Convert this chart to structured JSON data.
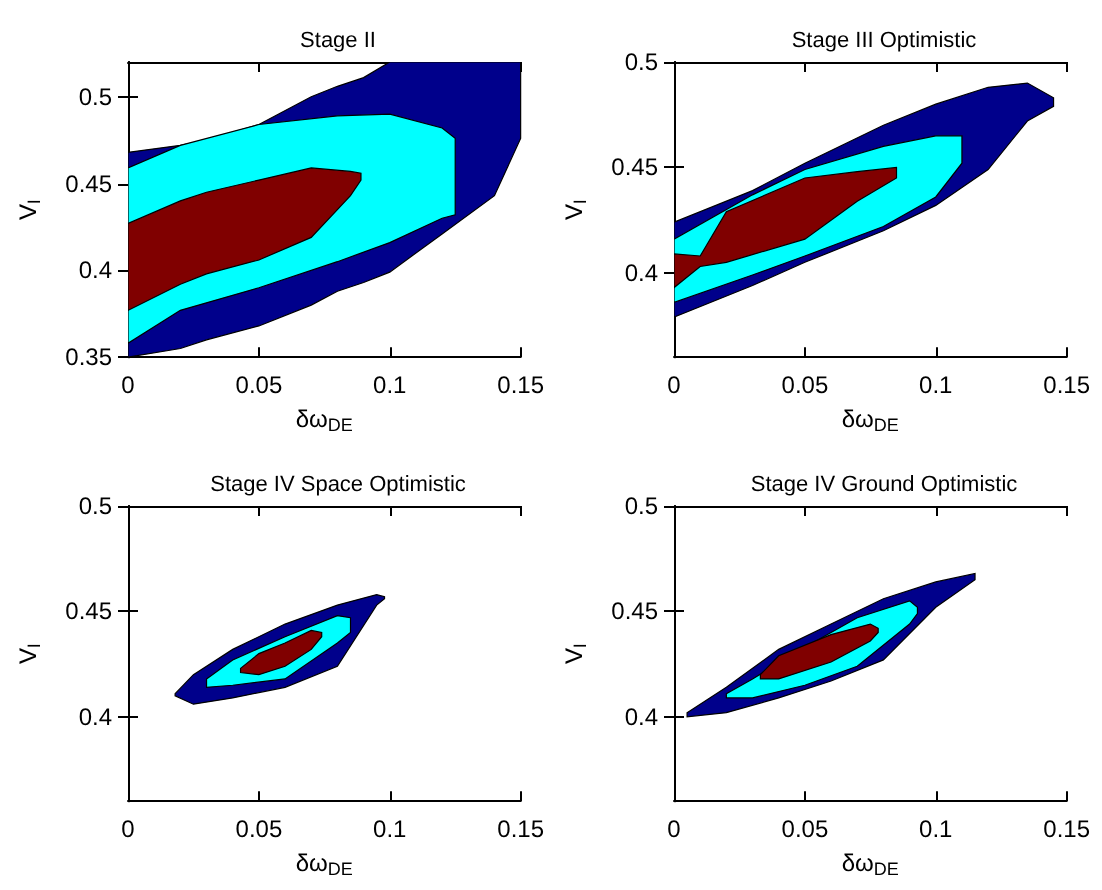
{
  "chart_data": [
    {
      "type": "area",
      "title": "Stage II",
      "xlabel": "δω$_{DE}$",
      "ylabel": "V$_{I}$",
      "xlim": [
        0,
        0.15
      ],
      "ylim": [
        0.35,
        0.52
      ],
      "xticks": [
        0,
        0.05,
        0.1,
        0.15
      ],
      "yticks": [
        0.35,
        0.4,
        0.45,
        0.5
      ],
      "grid": false,
      "series": [
        {
          "color": "#00008b",
          "x": [
            0,
            0.02,
            0.03,
            0.05,
            0.07,
            0.08,
            0.09,
            0.1,
            0.12,
            0.14,
            0.15
          ],
          "values": [
            null,
            null,
            null,
            null,
            null,
            null,
            null,
            null,
            null,
            null,
            null
          ],
          "lower": [
            0.35,
            0.355,
            0.36,
            0.368,
            0.38,
            0.388,
            0.393,
            0.399,
            0.421,
            0.443,
            0.476
          ],
          "upper": [
            0.468,
            0.472,
            0.475,
            0.484,
            0.5,
            0.506,
            0.511,
            0.52,
            0.52,
            0.52,
            0.52
          ]
        },
        {
          "color": "#00ffff",
          "x": [
            0,
            0.02,
            0.05,
            0.08,
            0.1,
            0.12,
            0.125
          ],
          "values": [
            null,
            null,
            null,
            null,
            null,
            null,
            null
          ],
          "lower": [
            0.358,
            0.377,
            0.39,
            0.405,
            0.416,
            0.43,
            0.432
          ],
          "upper": [
            0.459,
            0.472,
            0.484,
            0.489,
            0.49,
            0.482,
            0.476
          ]
        },
        {
          "color": "#800000",
          "x": [
            0,
            0.02,
            0.03,
            0.05,
            0.07,
            0.085,
            0.089
          ],
          "values": [
            null,
            null,
            null,
            null,
            null,
            null,
            null
          ],
          "lower": [
            0.377,
            0.392,
            0.398,
            0.406,
            0.419,
            0.443,
            0.452
          ],
          "upper": [
            0.427,
            0.44,
            0.445,
            0.452,
            0.459,
            0.457,
            0.456
          ]
        }
      ]
    },
    {
      "type": "area",
      "title": "Stage III Optimistic",
      "xlabel": "δω$_{DE}$",
      "ylabel": "V$_{I}$",
      "xlim": [
        0,
        0.15
      ],
      "ylim": [
        0.36,
        0.5
      ],
      "xticks": [
        0,
        0.05,
        0.1,
        0.15
      ],
      "yticks": [
        0.4,
        0.45,
        0.5
      ],
      "grid": false,
      "series": [
        {
          "color": "#00008b",
          "x": [
            0,
            0.03,
            0.05,
            0.08,
            0.1,
            0.12,
            0.135,
            0.145
          ],
          "values": [
            null,
            null,
            null,
            null,
            null,
            null,
            null,
            null
          ],
          "lower": [
            0.379,
            0.394,
            0.405,
            0.42,
            0.432,
            0.449,
            0.472,
            0.479
          ],
          "upper": [
            0.424,
            0.439,
            0.452,
            0.47,
            0.48,
            0.488,
            0.49,
            0.483
          ]
        },
        {
          "color": "#00ffff",
          "x": [
            0,
            0.03,
            0.05,
            0.08,
            0.1,
            0.11
          ],
          "values": [
            null,
            null,
            null,
            null,
            null,
            null
          ],
          "lower": [
            0.386,
            0.399,
            0.408,
            0.422,
            0.436,
            0.452
          ],
          "upper": [
            0.416,
            0.437,
            0.449,
            0.46,
            0.465,
            0.465
          ]
        },
        {
          "color": "#800000",
          "x": [
            0,
            0.01,
            0.02,
            0.05,
            0.07,
            0.085
          ],
          "values": [
            null,
            null,
            null,
            null,
            null,
            null
          ],
          "lower": [
            0.393,
            0.403,
            0.405,
            0.416,
            0.434,
            0.445
          ],
          "upper": [
            0.409,
            0.408,
            0.429,
            0.445,
            0.448,
            0.45
          ]
        }
      ]
    },
    {
      "type": "area",
      "title": "Stage IV Space Optimistic",
      "xlabel": "δω$_{DE}$",
      "ylabel": "V$_{I}$",
      "xlim": [
        0,
        0.15
      ],
      "ylim": [
        0.36,
        0.5
      ],
      "xticks": [
        0,
        0.05,
        0.1,
        0.15
      ],
      "yticks": [
        0.4,
        0.45,
        0.5
      ],
      "grid": false,
      "series": [
        {
          "color": "#00008b",
          "x": [
            0.018,
            0.025,
            0.04,
            0.06,
            0.08,
            0.095,
            0.098
          ],
          "values": [
            null,
            null,
            null,
            null,
            null,
            null,
            null
          ],
          "lower": [
            0.41,
            0.406,
            0.409,
            0.414,
            0.424,
            0.453,
            0.456
          ],
          "upper": [
            0.411,
            0.42,
            0.432,
            0.444,
            0.453,
            0.458,
            0.457
          ]
        },
        {
          "color": "#00ffff",
          "x": [
            0.03,
            0.04,
            0.06,
            0.08,
            0.085
          ],
          "values": [
            null,
            null,
            null,
            null,
            null
          ],
          "lower": [
            0.414,
            0.415,
            0.418,
            0.435,
            0.44
          ],
          "upper": [
            0.418,
            0.427,
            0.438,
            0.448,
            0.447
          ]
        },
        {
          "color": "#800000",
          "x": [
            0.043,
            0.05,
            0.06,
            0.07,
            0.074
          ],
          "values": [
            null,
            null,
            null,
            null,
            null
          ],
          "lower": [
            0.421,
            0.42,
            0.424,
            0.432,
            0.438
          ],
          "upper": [
            0.423,
            0.43,
            0.435,
            0.441,
            0.44
          ]
        }
      ]
    },
    {
      "type": "area",
      "title": "Stage IV Ground Optimistic",
      "xlabel": "δω$_{DE}$",
      "ylabel": "V$_{I}$",
      "xlim": [
        0,
        0.15
      ],
      "ylim": [
        0.36,
        0.5
      ],
      "xticks": [
        0,
        0.05,
        0.1,
        0.15
      ],
      "yticks": [
        0.4,
        0.45,
        0.5
      ],
      "grid": false,
      "series": [
        {
          "color": "#00008b",
          "x": [
            0.005,
            0.02,
            0.04,
            0.06,
            0.08,
            0.1,
            0.115
          ],
          "values": [
            null,
            null,
            null,
            null,
            null,
            null,
            null
          ],
          "lower": [
            0.4,
            0.402,
            0.409,
            0.417,
            0.427,
            0.452,
            0.465
          ],
          "upper": [
            0.402,
            0.414,
            0.432,
            0.444,
            0.456,
            0.464,
            0.468
          ]
        },
        {
          "color": "#00ffff",
          "x": [
            0.02,
            0.03,
            0.05,
            0.07,
            0.09,
            0.093
          ],
          "values": [
            null,
            null,
            null,
            null,
            null,
            null
          ],
          "lower": [
            0.409,
            0.409,
            0.415,
            0.424,
            0.444,
            0.449
          ],
          "upper": [
            0.411,
            0.418,
            0.433,
            0.447,
            0.455,
            0.452
          ]
        },
        {
          "color": "#800000",
          "x": [
            0.033,
            0.04,
            0.06,
            0.075,
            0.078
          ],
          "values": [
            null,
            null,
            null,
            null,
            null
          ],
          "lower": [
            0.418,
            0.418,
            0.426,
            0.436,
            0.44
          ],
          "upper": [
            0.42,
            0.429,
            0.439,
            0.444,
            0.442
          ]
        }
      ]
    }
  ]
}
